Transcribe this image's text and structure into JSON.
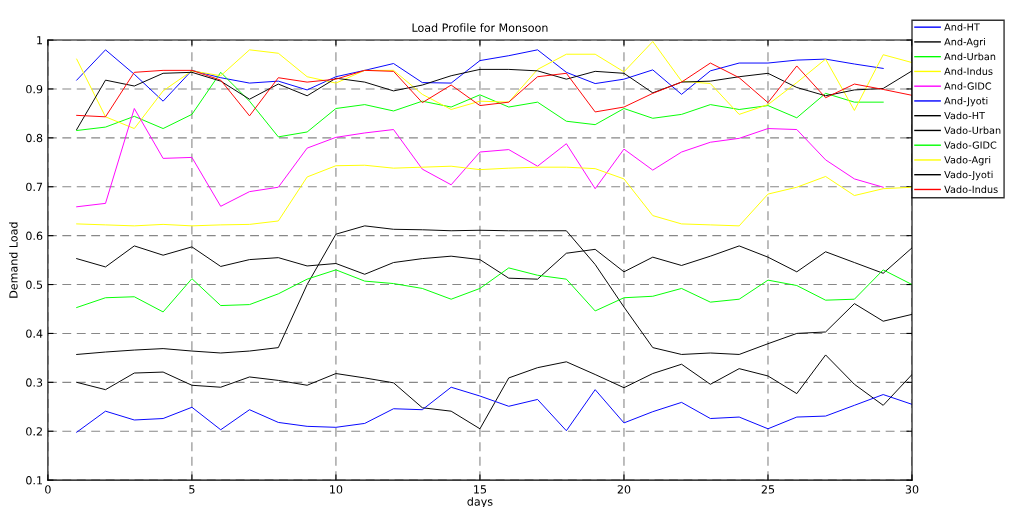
{
  "chart_data": {
    "type": "line",
    "title": "Load Profile for Monsoon",
    "xlabel": "days",
    "ylabel": "Demand Load",
    "x": [
      1,
      2,
      3,
      4,
      5,
      6,
      7,
      8,
      9,
      10,
      11,
      12,
      13,
      14,
      15,
      16,
      17,
      18,
      19,
      20,
      21,
      22,
      23,
      24,
      25,
      26,
      27,
      28,
      29,
      30
    ],
    "xlim": [
      0,
      30
    ],
    "xticks": [
      0,
      5,
      10,
      15,
      20,
      25,
      30
    ],
    "ylim": [
      0.1,
      1
    ],
    "yticks": [
      0.1,
      0.2,
      0.3,
      0.4,
      0.5,
      0.6,
      0.7,
      0.8,
      0.9,
      1
    ],
    "grid": true,
    "legend": "top right",
    "line_style": "solid",
    "marker": "none",
    "series": [
      {
        "name": "And-HT",
        "color": "#0000ff",
        "values": [
          0.918,
          0.98,
          0.93,
          0.875,
          0.938,
          0.923,
          0.912,
          0.916,
          0.898,
          0.925,
          0.938,
          0.952,
          0.913,
          0.912,
          0.958,
          0.968,
          0.98,
          0.934,
          0.911,
          0.92,
          0.939,
          0.889,
          0.937,
          0.953,
          0.953,
          0.959,
          0.961,
          0.951,
          0.942,
          null
        ]
      },
      {
        "name": "And-Agri",
        "color": "#000000",
        "values": [
          0.3,
          0.285,
          0.319,
          0.321,
          0.294,
          0.29,
          0.311,
          0.304,
          0.294,
          0.318,
          0.309,
          0.299,
          0.248,
          0.241,
          0.205,
          0.309,
          0.33,
          0.342,
          0.316,
          0.289,
          0.318,
          0.337,
          0.296,
          0.328,
          0.313,
          0.277,
          0.356,
          0.296,
          0.253,
          0.316
        ]
      },
      {
        "name": "And-Urban",
        "color": "#00ff00",
        "values": [
          0.815,
          0.822,
          0.844,
          0.819,
          0.848,
          0.934,
          0.875,
          0.802,
          0.812,
          0.86,
          0.868,
          0.855,
          0.875,
          0.863,
          0.888,
          0.863,
          0.873,
          0.834,
          0.827,
          0.86,
          0.84,
          0.848,
          0.868,
          0.858,
          0.866,
          0.841,
          0.891,
          0.873,
          0.873,
          null
        ]
      },
      {
        "name": "And-Indus",
        "color": "#ffff00",
        "values": [
          0.961,
          0.843,
          0.819,
          0.896,
          0.937,
          0.927,
          0.98,
          0.973,
          0.925,
          0.912,
          0.938,
          0.938,
          0.889,
          0.858,
          0.875,
          0.873,
          0.94,
          0.971,
          0.971,
          0.935,
          0.997,
          0.916,
          0.911,
          0.848,
          0.868,
          0.913,
          0.961,
          0.856,
          0.97,
          0.954
        ]
      },
      {
        "name": "And-GIDC",
        "color": "#ff00ff",
        "values": [
          0.659,
          0.666,
          0.86,
          0.758,
          0.76,
          0.66,
          0.69,
          0.699,
          0.779,
          0.801,
          0.81,
          0.817,
          0.736,
          0.704,
          0.771,
          0.776,
          0.742,
          0.788,
          0.696,
          0.777,
          0.734,
          0.771,
          0.791,
          0.799,
          0.819,
          0.817,
          0.755,
          0.716,
          0.699,
          null
        ]
      },
      {
        "name": "And-Jyoti",
        "color": "#0000ff",
        "values": [
          0.198,
          0.241,
          0.223,
          0.226,
          0.249,
          0.203,
          0.244,
          0.218,
          0.21,
          0.208,
          0.216,
          0.246,
          0.244,
          0.29,
          0.272,
          0.251,
          0.265,
          0.201,
          0.285,
          0.217,
          0.24,
          0.259,
          0.226,
          0.229,
          0.205,
          0.229,
          0.231,
          0.253,
          0.275,
          0.255
        ]
      },
      {
        "name": "Vado-HT",
        "color": "#000000",
        "values": [
          0.553,
          0.536,
          0.579,
          0.56,
          0.577,
          0.537,
          0.551,
          0.555,
          0.538,
          0.543,
          0.521,
          0.545,
          0.553,
          0.558,
          0.551,
          0.513,
          0.511,
          0.564,
          0.572,
          0.526,
          0.556,
          0.539,
          0.558,
          0.579,
          0.556,
          0.526,
          0.567,
          0.545,
          0.523,
          0.575
        ]
      },
      {
        "name": "Vado-Urban",
        "color": "#000000",
        "values": [
          0.357,
          0.362,
          0.366,
          0.369,
          0.364,
          0.36,
          0.364,
          0.371,
          0.5,
          0.603,
          0.62,
          0.613,
          0.612,
          0.61,
          0.611,
          0.61,
          0.61,
          0.61,
          0.541,
          0.454,
          0.371,
          0.357,
          0.36,
          0.357,
          0.379,
          0.4,
          0.403,
          0.461,
          0.425,
          0.439
        ]
      },
      {
        "name": "Vado-GIDC",
        "color": "#00ff00",
        "values": [
          0.453,
          0.473,
          0.475,
          0.444,
          0.512,
          0.457,
          0.459,
          0.481,
          0.511,
          0.53,
          0.507,
          0.502,
          0.492,
          0.47,
          0.492,
          0.534,
          0.519,
          0.511,
          0.446,
          0.473,
          0.476,
          0.492,
          0.464,
          0.47,
          0.509,
          0.498,
          0.468,
          0.47,
          0.53,
          0.5
        ]
      },
      {
        "name": "Vado-Agri",
        "color": "#ffff00",
        "values": [
          0.624,
          0.622,
          0.62,
          0.623,
          0.62,
          0.622,
          0.623,
          0.63,
          0.72,
          0.743,
          0.744,
          0.738,
          0.74,
          0.742,
          0.735,
          0.738,
          0.74,
          0.74,
          0.737,
          0.716,
          0.641,
          0.624,
          0.622,
          0.62,
          0.685,
          0.699,
          0.721,
          0.682,
          0.696,
          0.699
        ]
      },
      {
        "name": "Vado-Jyoti",
        "color": "#000000",
        "values": [
          0.817,
          0.918,
          0.906,
          0.932,
          0.934,
          0.916,
          0.879,
          0.91,
          0.886,
          0.922,
          0.914,
          0.896,
          0.908,
          0.927,
          0.94,
          0.94,
          0.937,
          0.92,
          0.936,
          0.932,
          0.892,
          0.914,
          0.916,
          0.925,
          0.932,
          0.903,
          0.886,
          0.898,
          0.901,
          0.937
        ]
      },
      {
        "name": "Vado-Indus",
        "color": "#ff0000",
        "values": [
          0.846,
          0.843,
          0.934,
          0.938,
          0.938,
          0.918,
          0.845,
          0.923,
          0.914,
          0.92,
          0.938,
          0.936,
          0.872,
          0.908,
          0.866,
          0.873,
          0.925,
          0.932,
          0.853,
          0.863,
          0.891,
          0.914,
          0.953,
          0.923,
          0.872,
          0.947,
          0.882,
          0.91,
          0.899,
          0.887
        ]
      }
    ]
  }
}
